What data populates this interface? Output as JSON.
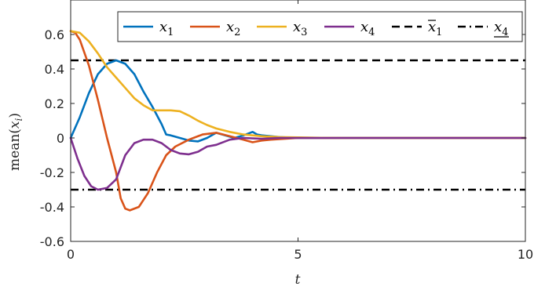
{
  "chart_data": {
    "type": "line",
    "xlabel": "t",
    "ylabel": "mean(x_i)",
    "xlim": [
      0,
      10
    ],
    "ylim": [
      -0.6,
      0.8
    ],
    "xticks": [
      0,
      5,
      10
    ],
    "xtick_labels": [
      "0",
      "5",
      "10"
    ],
    "yticks": [
      -0.6,
      -0.4,
      -0.2,
      0,
      0.2,
      0.4,
      0.6
    ],
    "ytick_labels": [
      "-0.6",
      "-0.4",
      "-0.2",
      "0",
      "0.2",
      "0.4",
      "0.6"
    ],
    "grid": false,
    "legend_position": "top-right",
    "series": [
      {
        "name": "x_1",
        "color": "#0072BD",
        "style": "solid",
        "x": [
          0,
          0.2,
          0.4,
          0.6,
          0.8,
          1.0,
          1.2,
          1.4,
          1.6,
          1.8,
          2.0,
          2.1,
          2.2,
          2.4,
          2.6,
          2.8,
          3.0,
          3.2,
          3.4,
          3.6,
          3.8,
          4.0,
          4.1,
          4.2,
          4.4,
          4.6,
          5.0,
          5.5,
          6.0,
          7.0,
          8.0,
          9.0,
          10.0
        ],
        "y": [
          0,
          0.12,
          0.26,
          0.37,
          0.43,
          0.45,
          0.43,
          0.37,
          0.27,
          0.18,
          0.08,
          0.02,
          0.015,
          0.0,
          -0.015,
          -0.02,
          0.0,
          0.03,
          0.015,
          0.0,
          0.015,
          0.035,
          0.02,
          0.015,
          0.01,
          0.005,
          0.0,
          0.0,
          0.0,
          0.0,
          0.0,
          0.0,
          0.0
        ]
      },
      {
        "name": "x_2",
        "color": "#D95319",
        "style": "solid",
        "x": [
          0,
          0.1,
          0.2,
          0.4,
          0.6,
          0.8,
          1.0,
          1.1,
          1.2,
          1.3,
          1.5,
          1.7,
          1.9,
          2.1,
          2.3,
          2.6,
          2.9,
          3.2,
          3.5,
          3.8,
          4.0,
          4.2,
          4.4,
          5.0,
          5.5,
          6.0,
          7.0,
          8.0,
          9.0,
          10.0
        ],
        "y": [
          0.62,
          0.61,
          0.57,
          0.42,
          0.22,
          0.0,
          -0.2,
          -0.35,
          -0.41,
          -0.42,
          -0.4,
          -0.32,
          -0.2,
          -0.1,
          -0.05,
          -0.01,
          0.02,
          0.03,
          0.01,
          -0.01,
          -0.025,
          -0.015,
          -0.01,
          0.0,
          0.0,
          0.0,
          0.0,
          0.0,
          0.0,
          0.0
        ]
      },
      {
        "name": "x_3",
        "color": "#EDB120",
        "style": "solid",
        "x": [
          0,
          0.2,
          0.4,
          0.6,
          0.8,
          1.0,
          1.2,
          1.4,
          1.6,
          1.8,
          2.0,
          2.2,
          2.4,
          2.6,
          2.8,
          3.0,
          3.2,
          3.5,
          3.8,
          4.2,
          4.6,
          5.0,
          5.5,
          6.0,
          7.0,
          8.0,
          9.0,
          10.0
        ],
        "y": [
          0.62,
          0.61,
          0.56,
          0.49,
          0.41,
          0.35,
          0.29,
          0.23,
          0.19,
          0.16,
          0.16,
          0.16,
          0.155,
          0.13,
          0.1,
          0.075,
          0.055,
          0.035,
          0.02,
          0.01,
          0.005,
          0.003,
          0.001,
          0.0,
          0.0,
          0.0,
          0.0,
          0.0
        ]
      },
      {
        "name": "x_4",
        "color": "#7E2F8E",
        "style": "solid",
        "x": [
          0,
          0.15,
          0.3,
          0.45,
          0.6,
          0.8,
          1.0,
          1.2,
          1.4,
          1.6,
          1.8,
          2.0,
          2.2,
          2.4,
          2.6,
          2.8,
          3.0,
          3.2,
          3.5,
          3.8,
          4.2,
          4.6,
          5.0,
          6.0,
          7.0,
          8.0,
          9.0,
          10.0
        ],
        "y": [
          0,
          -0.12,
          -0.22,
          -0.28,
          -0.3,
          -0.29,
          -0.24,
          -0.1,
          -0.03,
          -0.01,
          -0.01,
          -0.03,
          -0.07,
          -0.09,
          -0.095,
          -0.08,
          -0.05,
          -0.04,
          -0.01,
          0.0,
          -0.005,
          0.0,
          0.0,
          0.0,
          0.0,
          0.0,
          0.0,
          0.0
        ]
      },
      {
        "name": "x̄_1",
        "color": "#000000",
        "style": "dashed",
        "x": [
          0,
          10
        ],
        "y": [
          0.45,
          0.45
        ]
      },
      {
        "name": "x_4 (underlined)",
        "color": "#000000",
        "style": "dashdot",
        "x": [
          0,
          10
        ],
        "y": [
          -0.3,
          -0.3
        ]
      }
    ],
    "legend": [
      {
        "base": "x",
        "sub": "1",
        "mark": "none"
      },
      {
        "base": "x",
        "sub": "2",
        "mark": "none"
      },
      {
        "base": "x",
        "sub": "3",
        "mark": "none"
      },
      {
        "base": "x",
        "sub": "4",
        "mark": "none"
      },
      {
        "base": "x",
        "sub": "1",
        "mark": "overline"
      },
      {
        "base": "x",
        "sub": "4",
        "mark": "underline"
      }
    ]
  }
}
